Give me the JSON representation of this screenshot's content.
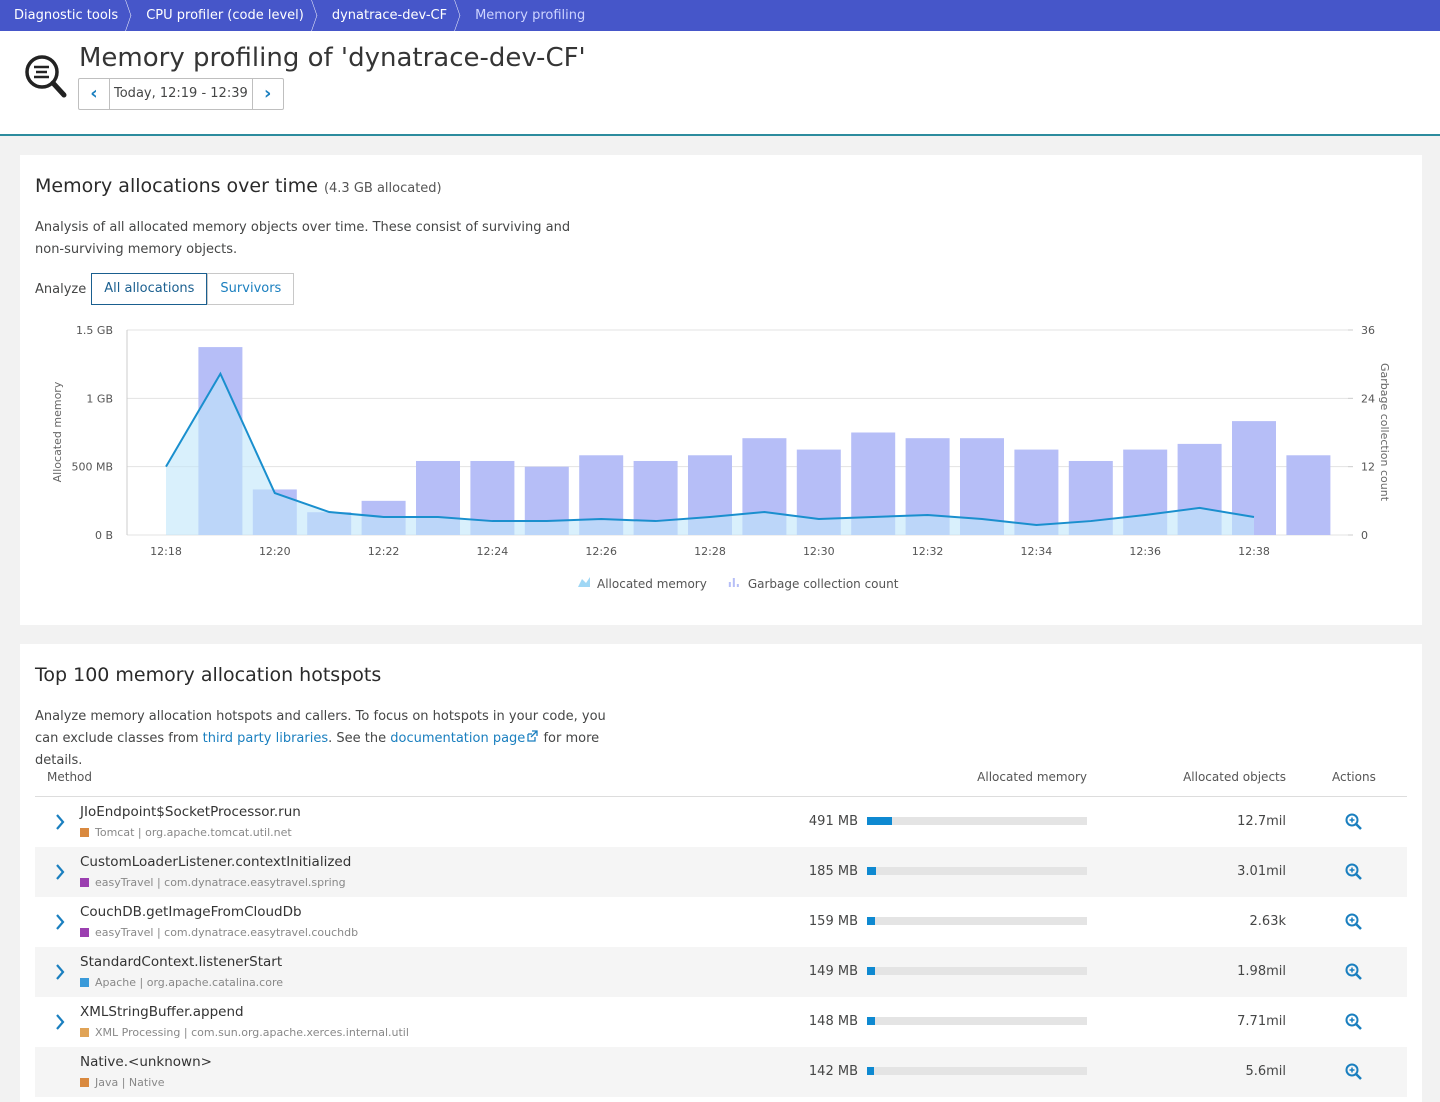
{
  "breadcrumbs": [
    "Diagnostic tools",
    "CPU profiler (code level)",
    "dynatrace-dev-CF",
    "Memory profiling"
  ],
  "header": {
    "title": "Memory profiling of 'dynatrace-dev-CF'",
    "timeframe": "Today, 12:19 - 12:39"
  },
  "allocations": {
    "title": "Memory allocations over time",
    "total": {
      "value": 4300,
      "label": "(4.3 GB allocated)"
    },
    "description": "Analysis of all allocated memory objects over time. These consist of surviving and non-surviving memory objects.",
    "analyze_label": "Analyze",
    "tabs": [
      "All allocations",
      "Survivors"
    ],
    "active_tab": 0,
    "chart": {
      "type": "bar-area",
      "ylabel": "Allocated memory",
      "y2label": "Garbage collection count",
      "categories": [
        "12:18",
        null,
        "12:20",
        null,
        "12:22",
        null,
        "12:24",
        null,
        "12:26",
        null,
        "12:28",
        null,
        "12:30",
        null,
        "12:32",
        null,
        "12:34",
        null,
        "12:36",
        null,
        "12:38",
        null
      ],
      "series": [
        {
          "name": "Allocated memory",
          "type": "area",
          "color": "#1a8fce",
          "values": [
            500,
            1180,
            307,
            168,
            132,
            132,
            102,
            102,
            117,
            102,
            132,
            168,
            117,
            132,
            146,
            117,
            73,
            102,
            146,
            198,
            132,
            null
          ]
        },
        {
          "name": "Garbage collection count",
          "type": "bar",
          "axis": "y2",
          "color": "#b6bef7",
          "values": [
            null,
            33,
            8,
            4,
            6,
            13,
            13,
            12,
            14,
            13,
            14,
            17,
            15,
            18,
            17,
            17,
            15,
            13,
            15,
            16,
            20,
            14
          ]
        }
      ],
      "ylim": [
        0,
        1500
      ],
      "yticks": [
        {
          "value": 0,
          "label": "0 B"
        },
        {
          "value": 500,
          "label": "500 MB"
        },
        {
          "value": 1000,
          "label": "1 GB"
        },
        {
          "value": 1500,
          "label": "1.5 GB"
        }
      ],
      "y2lim": [
        0,
        36
      ],
      "y2ticks": [
        0,
        12,
        24,
        36
      ],
      "grid": true
    }
  },
  "hotspots": {
    "title": "Top 100 memory allocation hotspots",
    "description": [
      "Analyze memory allocation hotspots and callers. To focus on hotspots in your code, you can exclude classes from ",
      "third party libraries",
      ". See the ",
      "documentation page",
      " for more details."
    ],
    "columns": [
      "Method",
      "Allocated memory",
      "Allocated objects",
      "Actions"
    ],
    "rows": [
      {
        "method": "JIoEndpoint$SocketProcessor.run",
        "category_color": "#d9893f",
        "category": "Tomcat | org.apache.tomcat.util.net",
        "allocated_memory": {
          "value": 491,
          "label": "491 MB"
        },
        "allocated_objects": "12.7mil",
        "expandable": true
      },
      {
        "method": "CustomLoaderListener.contextInitialized",
        "category_color": "#9b3fb0",
        "category": "easyTravel | com.dynatrace.easytravel.spring",
        "allocated_memory": {
          "value": 185,
          "label": "185 MB"
        },
        "allocated_objects": "3.01mil",
        "expandable": true
      },
      {
        "method": "CouchDB.getImageFromCloudDb",
        "category_color": "#9b3fb0",
        "category": "easyTravel | com.dynatrace.easytravel.couchdb",
        "allocated_memory": {
          "value": 159,
          "label": "159 MB"
        },
        "allocated_objects": "2.63k",
        "expandable": true
      },
      {
        "method": "StandardContext.listenerStart",
        "category_color": "#3a9ad9",
        "category": "Apache | org.apache.catalina.core",
        "allocated_memory": {
          "value": 149,
          "label": "149 MB"
        },
        "allocated_objects": "1.98mil",
        "expandable": true
      },
      {
        "method": "XMLStringBuffer.append",
        "category_color": "#e0a356",
        "category": "XML Processing | com.sun.org.apache.xerces.internal.util",
        "allocated_memory": {
          "value": 148,
          "label": "148 MB"
        },
        "allocated_objects": "7.71mil",
        "expandable": true
      },
      {
        "method": "Native.<unknown>",
        "category_color": "#d9893f",
        "category": "Java | Native",
        "allocated_memory": {
          "value": 142,
          "label": "142 MB"
        },
        "allocated_objects": "5.6mil",
        "expandable": false
      }
    ]
  }
}
